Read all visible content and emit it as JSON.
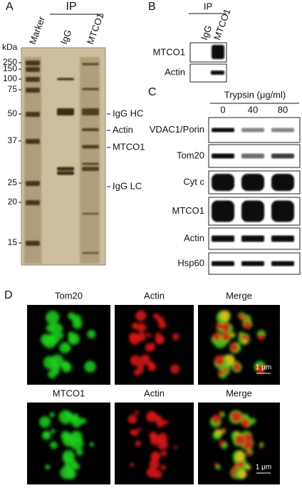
{
  "panel_a": {
    "letter": "A",
    "ip": "IP",
    "lanes": [
      "Marker",
      "IgG",
      "MTCO1"
    ],
    "kda": "kDa",
    "markers": [
      250,
      150,
      100,
      75,
      50,
      37,
      25,
      20,
      15
    ],
    "bands": [
      "IgG HC",
      "Actin",
      "MTCO1",
      "IgG LC"
    ]
  },
  "panel_b": {
    "letter": "B",
    "ip": "IP",
    "lanes": [
      "IgG",
      "MTCO1"
    ],
    "rows": [
      "MTCO1",
      "Actin"
    ]
  },
  "panel_c": {
    "letter": "C",
    "treatment": "Trypsin (μg/ml)",
    "doses": [
      "0",
      "40",
      "80"
    ],
    "rows": [
      "VDAC1/Porin",
      "Tom20",
      "Cyt c",
      "MTCO1",
      "Actin",
      "Hsp60"
    ]
  },
  "panel_d": {
    "letter": "D",
    "rows": [
      {
        "labels": [
          "Tom20",
          "Actin",
          "Merge"
        ],
        "scale": "1 μm"
      },
      {
        "labels": [
          "MTCO1",
          "Actin",
          "Merge"
        ],
        "scale": "1 μm"
      }
    ]
  }
}
